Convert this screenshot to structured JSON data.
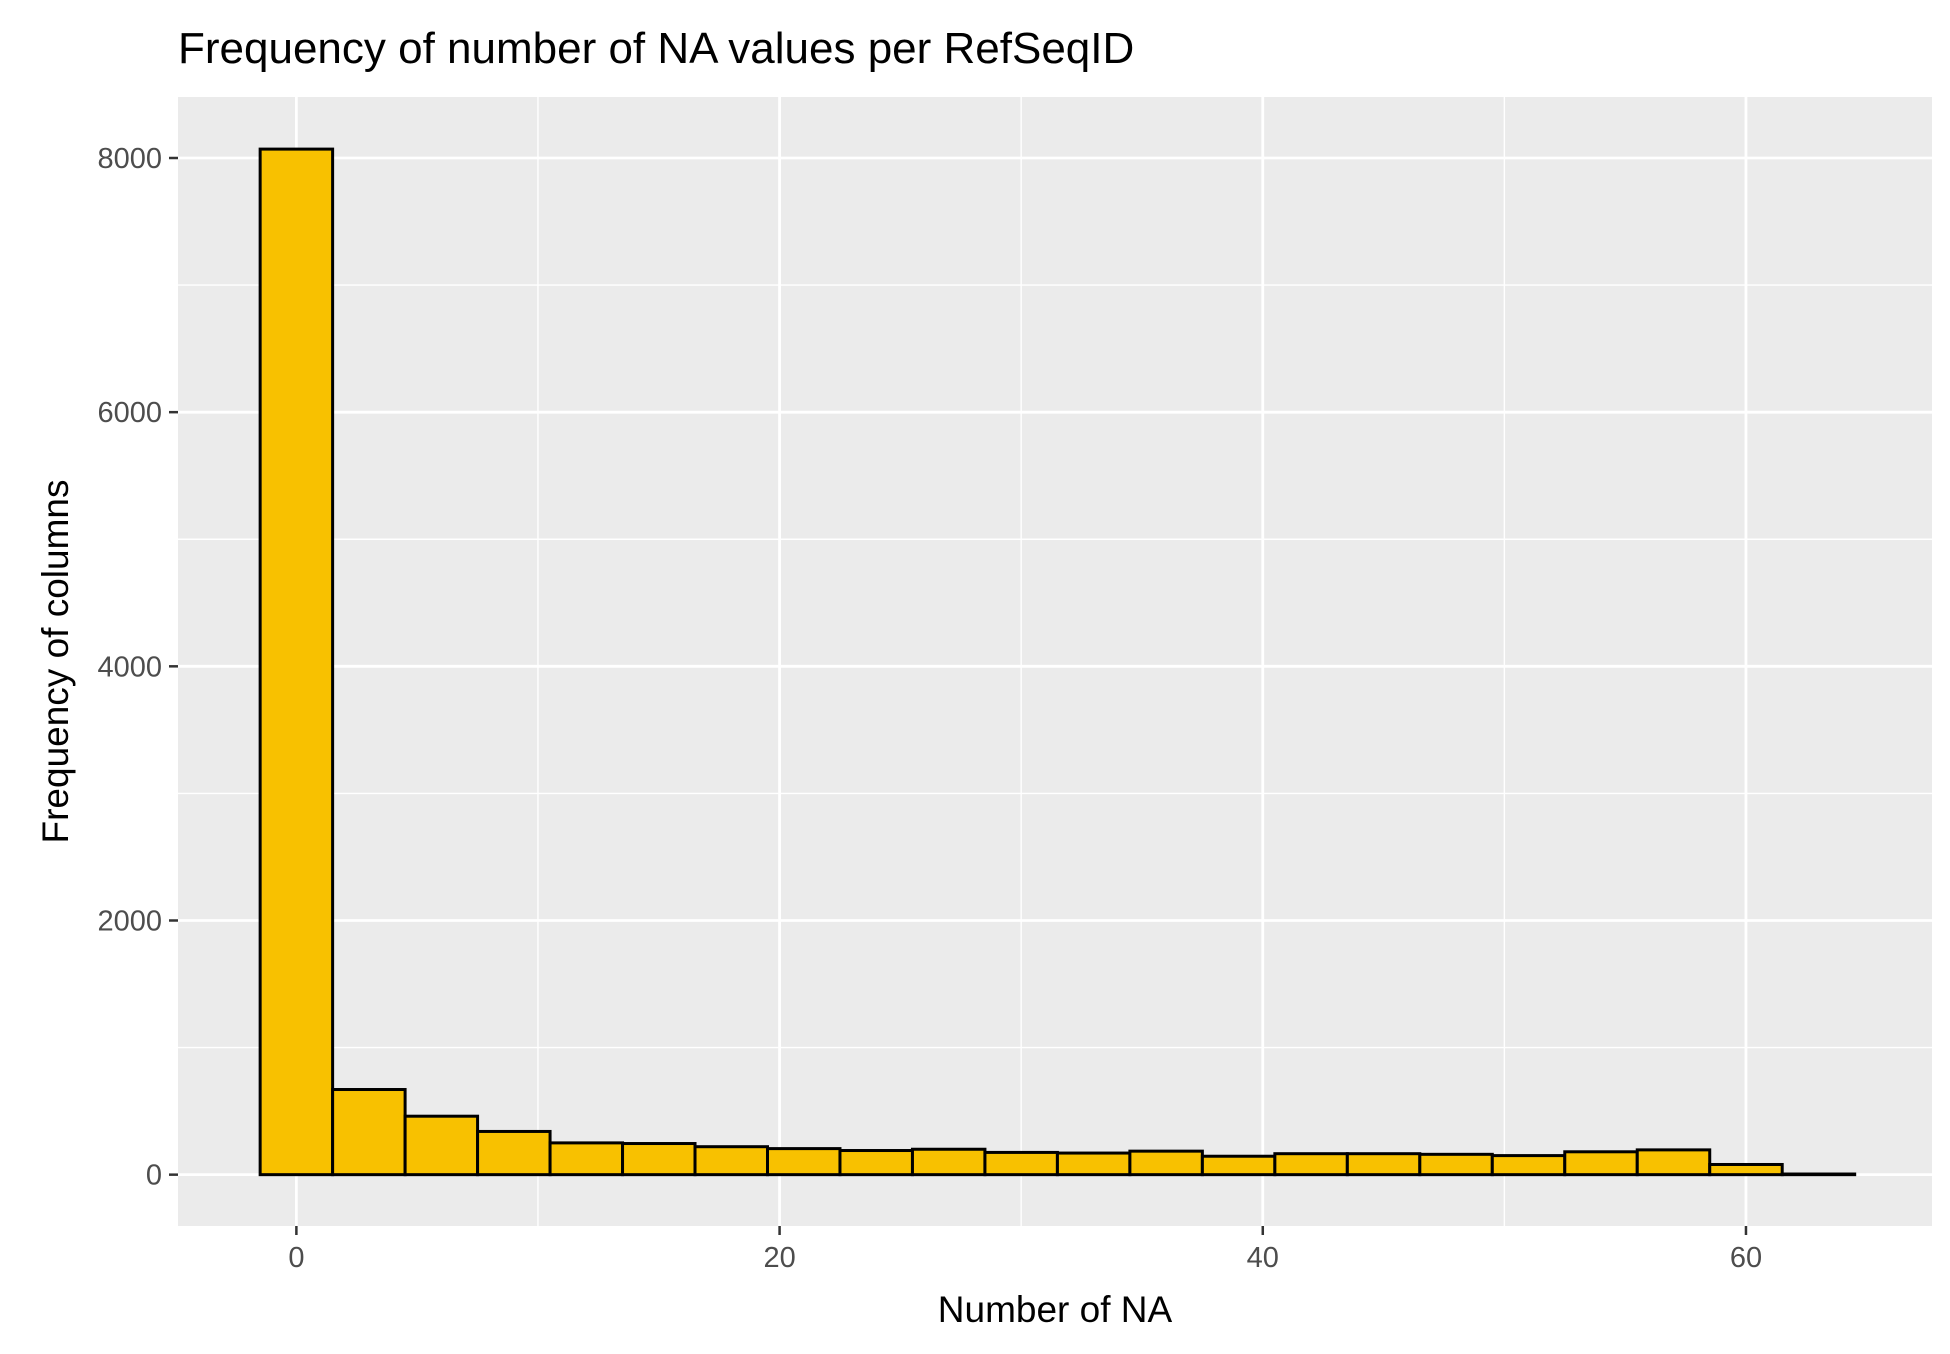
{
  "chart_data": {
    "type": "bar",
    "subtype": "histogram",
    "title": "Frequency of number of NA values per RefSeqID",
    "xlabel": "Number of NA",
    "ylabel": "Frequency of columns",
    "xlim": [
      -4.9,
      67.7
    ],
    "ylim": [
      -404,
      8480
    ],
    "x_ticks": [
      0,
      20,
      40,
      60
    ],
    "x_tick_labels": [
      "0",
      "20",
      "40",
      "60"
    ],
    "y_ticks": [
      0,
      2000,
      4000,
      6000,
      8000
    ],
    "y_tick_labels": [
      "0",
      "2000",
      "4000",
      "6000",
      "8000"
    ],
    "grid": true,
    "bin_width": 3,
    "bins": [
      {
        "x0": -1.5,
        "x1": 1.5,
        "count": 8070
      },
      {
        "x0": 1.5,
        "x1": 4.5,
        "count": 670
      },
      {
        "x0": 4.5,
        "x1": 7.5,
        "count": 460
      },
      {
        "x0": 7.5,
        "x1": 10.5,
        "count": 340
      },
      {
        "x0": 10.5,
        "x1": 13.5,
        "count": 250
      },
      {
        "x0": 13.5,
        "x1": 16.5,
        "count": 245
      },
      {
        "x0": 16.5,
        "x1": 19.5,
        "count": 220
      },
      {
        "x0": 19.5,
        "x1": 22.5,
        "count": 205
      },
      {
        "x0": 22.5,
        "x1": 25.5,
        "count": 190
      },
      {
        "x0": 25.5,
        "x1": 28.5,
        "count": 200
      },
      {
        "x0": 28.5,
        "x1": 31.5,
        "count": 175
      },
      {
        "x0": 31.5,
        "x1": 34.5,
        "count": 170
      },
      {
        "x0": 34.5,
        "x1": 37.5,
        "count": 185
      },
      {
        "x0": 37.5,
        "x1": 40.5,
        "count": 145
      },
      {
        "x0": 40.5,
        "x1": 43.5,
        "count": 165
      },
      {
        "x0": 43.5,
        "x1": 46.5,
        "count": 165
      },
      {
        "x0": 46.5,
        "x1": 49.5,
        "count": 160
      },
      {
        "x0": 49.5,
        "x1": 52.5,
        "count": 150
      },
      {
        "x0": 52.5,
        "x1": 55.5,
        "count": 180
      },
      {
        "x0": 55.5,
        "x1": 58.5,
        "count": 195
      },
      {
        "x0": 58.5,
        "x1": 61.5,
        "count": 80
      },
      {
        "x0": 61.5,
        "x1": 64.5,
        "count": 5
      }
    ],
    "colors": {
      "bar_fill": "#F8C100",
      "bar_outline": "#000000",
      "panel_background": "#EBEBEB",
      "grid": "#FFFFFF",
      "tick_text": "#4D4D4D"
    }
  }
}
